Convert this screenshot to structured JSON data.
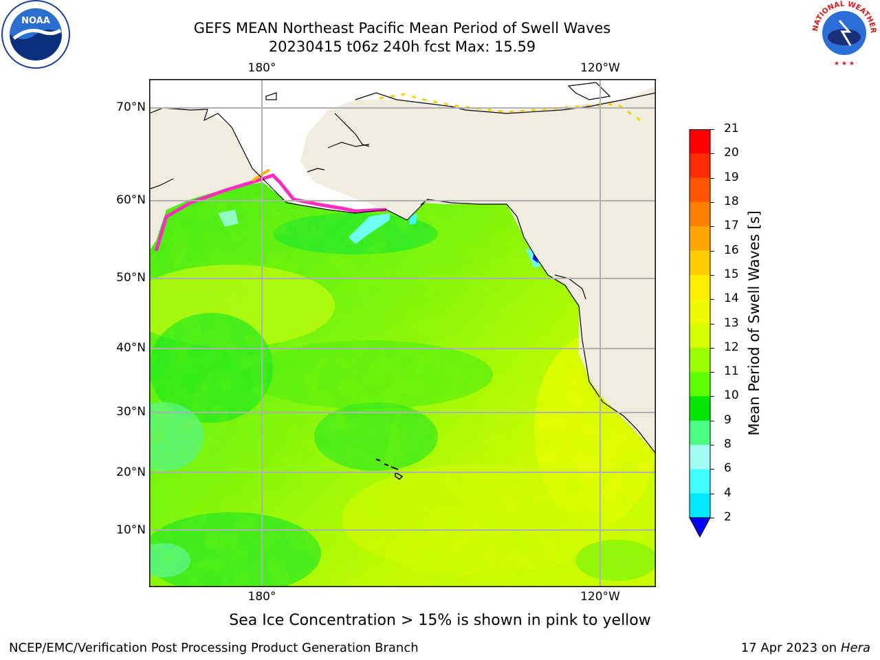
{
  "title": {
    "line1": "GEFS MEAN Northeast Pacific Mean Period of Swell Waves",
    "line2": "20230415 t06z 240h fcst   Max: 15.59"
  },
  "map": {
    "lon_labels": [
      "180°",
      "120°W"
    ],
    "lat_labels": [
      "70°N",
      "60°N",
      "50°N",
      "40°N",
      "30°N",
      "20°N",
      "10°N"
    ]
  },
  "colorbar": {
    "label": "Mean Period of Swell Waves [s]",
    "ticks": [
      "21",
      "20",
      "19",
      "18",
      "17",
      "16",
      "15",
      "14",
      "13",
      "12",
      "11",
      "10",
      "9",
      "8",
      "6",
      "4",
      "2"
    ],
    "colors": {
      "c21": "#ff0000",
      "c20": "#ff2a00",
      "c19": "#ff5500",
      "c18": "#ff7f00",
      "c17": "#ffa600",
      "c16": "#ffcc00",
      "c15": "#ffee00",
      "c14": "#f0fb00",
      "c13": "#d8ff00",
      "c12": "#9aff00",
      "c11": "#5cff00",
      "c10": "#00e600",
      "c9": "#4cff80",
      "c8": "#a0fff0",
      "c6": "#40ffff",
      "c4": "#00e8ff",
      "c2": "#0070ff",
      "under": "#0000ff"
    }
  },
  "caption": "Sea Ice Concentration > 15% is shown in pink to yellow",
  "footer": {
    "left": "NCEP/EMC/Verification Post Processing Product Generation Branch",
    "right_prefix": "17 Apr 2023 on ",
    "right_italic": "Hera"
  },
  "logos": {
    "noaa_text": "NOAA",
    "nws_text": "NATIONAL WEATHER SERVICE"
  }
}
